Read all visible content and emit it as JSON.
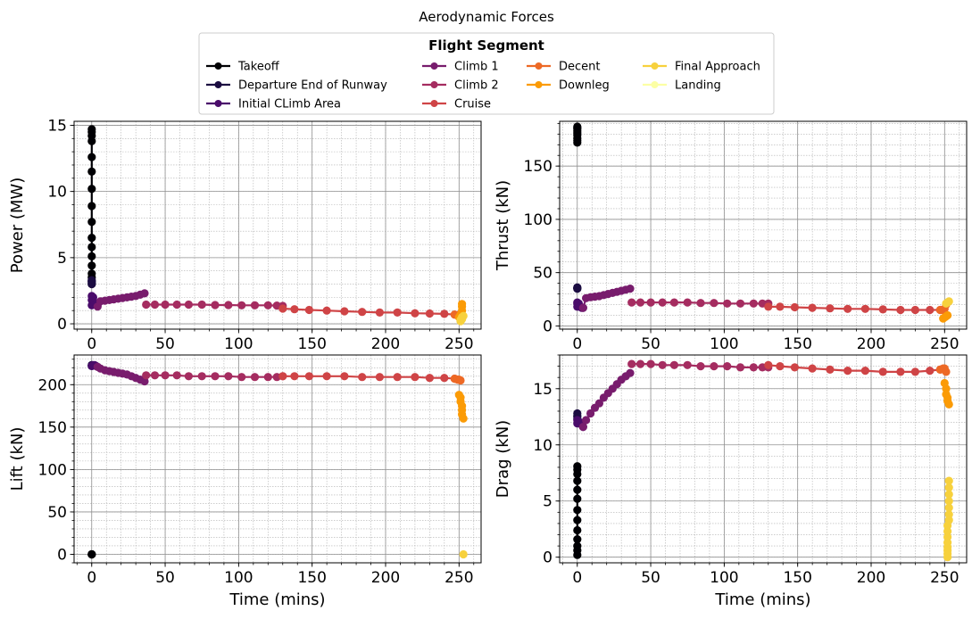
{
  "figure": {
    "title": "Aerodynamic Forces",
    "legend_title": "Flight Segment",
    "legend_placement": "top-center",
    "xlabel": "Time (mins)"
  },
  "segments": [
    {
      "name": "Takeoff",
      "color": "#000004"
    },
    {
      "name": "Departure End of Runway",
      "color": "#1b0c41"
    },
    {
      "name": "Initial CLimb Area",
      "color": "#4a0c6b"
    },
    {
      "name": "Climb 1",
      "color": "#781c6d"
    },
    {
      "name": "Climb 2",
      "color": "#a52c60"
    },
    {
      "name": "Cruise",
      "color": "#cf4446"
    },
    {
      "name": "Decent",
      "color": "#ed6925"
    },
    {
      "name": "Downleg",
      "color": "#fb9b06"
    },
    {
      "name": "Final Approach",
      "color": "#f7d13d"
    },
    {
      "name": "Landing",
      "color": "#fcffa4"
    }
  ],
  "chart_data": [
    {
      "type": "line",
      "ylabel": "Power (MW)",
      "xlim": [
        -12,
        265
      ],
      "ylim": [
        -0.4,
        15.3
      ],
      "xticks": [
        0,
        50,
        100,
        150,
        200,
        250
      ],
      "yticks": [
        0,
        5,
        10,
        15
      ],
      "show_xlabel": false,
      "grid": true,
      "series": [
        {
          "color": "#000004",
          "x": [
            0,
            0,
            0,
            0,
            0,
            0,
            0,
            0,
            0,
            0,
            0,
            0,
            0,
            0,
            0,
            0
          ],
          "y": [
            3.0,
            3.5,
            3.8,
            4.4,
            5.1,
            5.8,
            6.5,
            7.7,
            8.9,
            10.2,
            11.5,
            12.6,
            13.8,
            14.2,
            14.5,
            14.7
          ]
        },
        {
          "color": "#1b0c41",
          "x": [
            0,
            0,
            0,
            0,
            0
          ],
          "y": [
            3.1,
            3.2,
            3.3,
            3.2,
            3.0
          ]
        },
        {
          "color": "#4a0c6b",
          "x": [
            0,
            0,
            0,
            1,
            2,
            3,
            4
          ],
          "y": [
            1.4,
            1.8,
            2.1,
            2.0,
            1.6,
            1.5,
            1.4
          ]
        },
        {
          "color": "#781c6d",
          "x": [
            4,
            6,
            9,
            12,
            15,
            18,
            21,
            24,
            27,
            30,
            33,
            36
          ],
          "y": [
            1.3,
            1.7,
            1.75,
            1.8,
            1.85,
            1.9,
            1.95,
            2.0,
            2.05,
            2.1,
            2.2,
            2.3
          ]
        },
        {
          "color": "#a52c60",
          "x": [
            37,
            43,
            50,
            58,
            66,
            75,
            84,
            93,
            102,
            111,
            120,
            126,
            130
          ],
          "y": [
            1.45,
            1.45,
            1.45,
            1.45,
            1.45,
            1.45,
            1.42,
            1.42,
            1.4,
            1.4,
            1.4,
            1.38,
            1.35
          ]
        },
        {
          "color": "#cf4446",
          "x": [
            130,
            138,
            148,
            160,
            172,
            184,
            196,
            208,
            220,
            230,
            240,
            247
          ],
          "y": [
            1.15,
            1.1,
            1.05,
            1.0,
            0.95,
            0.9,
            0.85,
            0.85,
            0.8,
            0.78,
            0.75,
            0.7
          ]
        },
        {
          "color": "#ed6925",
          "x": [
            247,
            249,
            250,
            251
          ],
          "y": [
            0.7,
            0.65,
            0.6,
            0.55
          ]
        },
        {
          "color": "#fb9b06",
          "x": [
            250,
            251,
            252,
            252,
            252
          ],
          "y": [
            0.5,
            0.7,
            1.0,
            1.3,
            1.5
          ]
        },
        {
          "color": "#f7d13d",
          "x": [
            251,
            251,
            252,
            252,
            252,
            253
          ],
          "y": [
            0.2,
            0.3,
            0.35,
            0.4,
            0.5,
            0.6
          ]
        }
      ]
    },
    {
      "type": "line",
      "ylabel": "Thrust (kN)",
      "xlim": [
        -12,
        265
      ],
      "ylim": [
        -3,
        192
      ],
      "xticks": [
        0,
        50,
        100,
        150,
        200,
        250
      ],
      "yticks": [
        0,
        50,
        100,
        150
      ],
      "show_xlabel": false,
      "grid": true,
      "series": [
        {
          "color": "#000004",
          "x": [
            0,
            0,
            0,
            0,
            0,
            0,
            0,
            0,
            0
          ],
          "y": [
            172,
            174,
            176,
            179,
            181,
            183,
            185,
            186,
            187
          ]
        },
        {
          "color": "#1b0c41",
          "x": [
            0,
            0,
            0,
            0
          ],
          "y": [
            35,
            36,
            36,
            35
          ]
        },
        {
          "color": "#4a0c6b",
          "x": [
            0,
            0,
            0,
            1,
            2,
            3,
            4
          ],
          "y": [
            18,
            21,
            22,
            21,
            18,
            17,
            17
          ]
        },
        {
          "color": "#781c6d",
          "x": [
            4,
            6,
            9,
            12,
            15,
            18,
            21,
            24,
            27,
            30,
            33,
            36
          ],
          "y": [
            17,
            26,
            27,
            27.5,
            28,
            29,
            30,
            31,
            32,
            33,
            34,
            35
          ]
        },
        {
          "color": "#a52c60",
          "x": [
            37,
            43,
            50,
            58,
            66,
            75,
            84,
            93,
            102,
            111,
            120,
            126,
            130
          ],
          "y": [
            22,
            22,
            22,
            22,
            22,
            22,
            21.5,
            21.5,
            21,
            21,
            21,
            21,
            21
          ]
        },
        {
          "color": "#cf4446",
          "x": [
            130,
            138,
            148,
            160,
            172,
            184,
            196,
            208,
            220,
            230,
            240,
            247
          ],
          "y": [
            18,
            18,
            17.5,
            17,
            16.5,
            16,
            16,
            15.5,
            15,
            15,
            15,
            15
          ]
        },
        {
          "color": "#ed6925",
          "x": [
            247,
            249,
            250,
            251
          ],
          "y": [
            15,
            15,
            16,
            20
          ]
        },
        {
          "color": "#fb9b06",
          "x": [
            249,
            250,
            251,
            252
          ],
          "y": [
            7,
            8,
            9,
            10
          ]
        },
        {
          "color": "#f7d13d",
          "x": [
            251,
            252,
            253
          ],
          "y": [
            21,
            22,
            23
          ]
        }
      ]
    },
    {
      "type": "line",
      "ylabel": "Lift (kN)",
      "xlim": [
        -12,
        265
      ],
      "ylim": [
        -10,
        235
      ],
      "xticks": [
        0,
        50,
        100,
        150,
        200,
        250
      ],
      "yticks": [
        0,
        50,
        100,
        150,
        200
      ],
      "show_xlabel": true,
      "grid": true,
      "series": [
        {
          "color": "#000004",
          "x": [
            0,
            0,
            0,
            0
          ],
          "y": [
            0,
            0,
            0,
            0
          ]
        },
        {
          "color": "#1b0c41",
          "x": [
            0,
            0,
            0
          ],
          "y": [
            222,
            223,
            223
          ]
        },
        {
          "color": "#4a0c6b",
          "x": [
            0,
            1,
            2,
            3,
            4
          ],
          "y": [
            222,
            223,
            223,
            222,
            221
          ]
        },
        {
          "color": "#781c6d",
          "x": [
            4,
            6,
            9,
            12,
            15,
            18,
            21,
            24,
            27,
            30,
            33,
            36
          ],
          "y": [
            221,
            219,
            217,
            216,
            215,
            214,
            213,
            212,
            210,
            208,
            206,
            204
          ]
        },
        {
          "color": "#a52c60",
          "x": [
            37,
            43,
            50,
            58,
            66,
            75,
            84,
            93,
            102,
            111,
            120,
            126,
            130
          ],
          "y": [
            211,
            211,
            211,
            211,
            210,
            210,
            210,
            210,
            209,
            209,
            209,
            209,
            210
          ]
        },
        {
          "color": "#cf4446",
          "x": [
            130,
            138,
            148,
            160,
            172,
            184,
            196,
            208,
            220,
            230,
            240,
            247
          ],
          "y": [
            210,
            210,
            210,
            210,
            210,
            209,
            209,
            209,
            209,
            208,
            208,
            207
          ]
        },
        {
          "color": "#ed6925",
          "x": [
            247,
            249,
            250,
            251
          ],
          "y": [
            207,
            206,
            206,
            205
          ]
        },
        {
          "color": "#fb9b06",
          "x": [
            250,
            251,
            251,
            252,
            252,
            252,
            253
          ],
          "y": [
            188,
            185,
            180,
            175,
            170,
            165,
            160
          ]
        },
        {
          "color": "#f7d13d",
          "x": [
            253
          ],
          "y": [
            0
          ]
        }
      ]
    },
    {
      "type": "line",
      "ylabel": "Drag (kN)",
      "xlim": [
        -12,
        265
      ],
      "ylim": [
        -0.5,
        18
      ],
      "xticks": [
        0,
        50,
        100,
        150,
        200,
        250
      ],
      "yticks": [
        0,
        5,
        10,
        15
      ],
      "show_xlabel": true,
      "grid": true,
      "series": [
        {
          "color": "#000004",
          "x": [
            0,
            0,
            0,
            0,
            0,
            0,
            0,
            0,
            0,
            0,
            0,
            0,
            0
          ],
          "y": [
            0.2,
            0.6,
            1.0,
            1.6,
            2.4,
            3.3,
            4.2,
            5.2,
            6.0,
            6.8,
            7.4,
            7.8,
            8.1
          ]
        },
        {
          "color": "#1b0c41",
          "x": [
            0,
            0,
            0,
            0
          ],
          "y": [
            12.3,
            12.5,
            12.6,
            12.8
          ]
        },
        {
          "color": "#4a0c6b",
          "x": [
            0,
            0,
            1,
            2,
            3,
            4
          ],
          "y": [
            12.2,
            11.9,
            12.0,
            12.0,
            11.8,
            11.6
          ]
        },
        {
          "color": "#781c6d",
          "x": [
            4,
            6,
            9,
            12,
            15,
            18,
            21,
            24,
            27,
            30,
            33,
            36
          ],
          "y": [
            11.6,
            12.2,
            12.8,
            13.3,
            13.7,
            14.2,
            14.6,
            15.0,
            15.4,
            15.8,
            16.1,
            16.4
          ]
        },
        {
          "color": "#a52c60",
          "x": [
            37,
            43,
            50,
            58,
            66,
            75,
            84,
            93,
            102,
            111,
            120,
            126,
            130
          ],
          "y": [
            17.2,
            17.2,
            17.2,
            17.1,
            17.1,
            17.1,
            17.0,
            17.0,
            17.0,
            16.9,
            16.9,
            16.9,
            16.9
          ]
        },
        {
          "color": "#cf4446",
          "x": [
            130,
            138,
            148,
            160,
            172,
            184,
            196,
            208,
            220,
            230,
            240,
            247
          ],
          "y": [
            17.1,
            17.0,
            16.9,
            16.8,
            16.7,
            16.6,
            16.6,
            16.5,
            16.5,
            16.5,
            16.6,
            16.7
          ]
        },
        {
          "color": "#ed6925",
          "x": [
            247,
            249,
            250,
            251
          ],
          "y": [
            16.7,
            16.8,
            16.8,
            16.5
          ]
        },
        {
          "color": "#fb9b06",
          "x": [
            250,
            251,
            251,
            252,
            252,
            253
          ],
          "y": [
            15.5,
            15.0,
            14.5,
            14.2,
            13.9,
            13.6
          ]
        },
        {
          "color": "#f7d13d",
          "x": [
            252,
            252,
            252,
            252,
            252,
            252,
            252,
            252,
            253,
            253,
            253,
            253,
            253,
            253,
            253
          ],
          "y": [
            0.0,
            0.3,
            0.6,
            0.9,
            1.3,
            1.8,
            2.3,
            2.8,
            3.3,
            3.8,
            4.4,
            5.0,
            5.6,
            6.2,
            6.8
          ]
        }
      ]
    }
  ]
}
